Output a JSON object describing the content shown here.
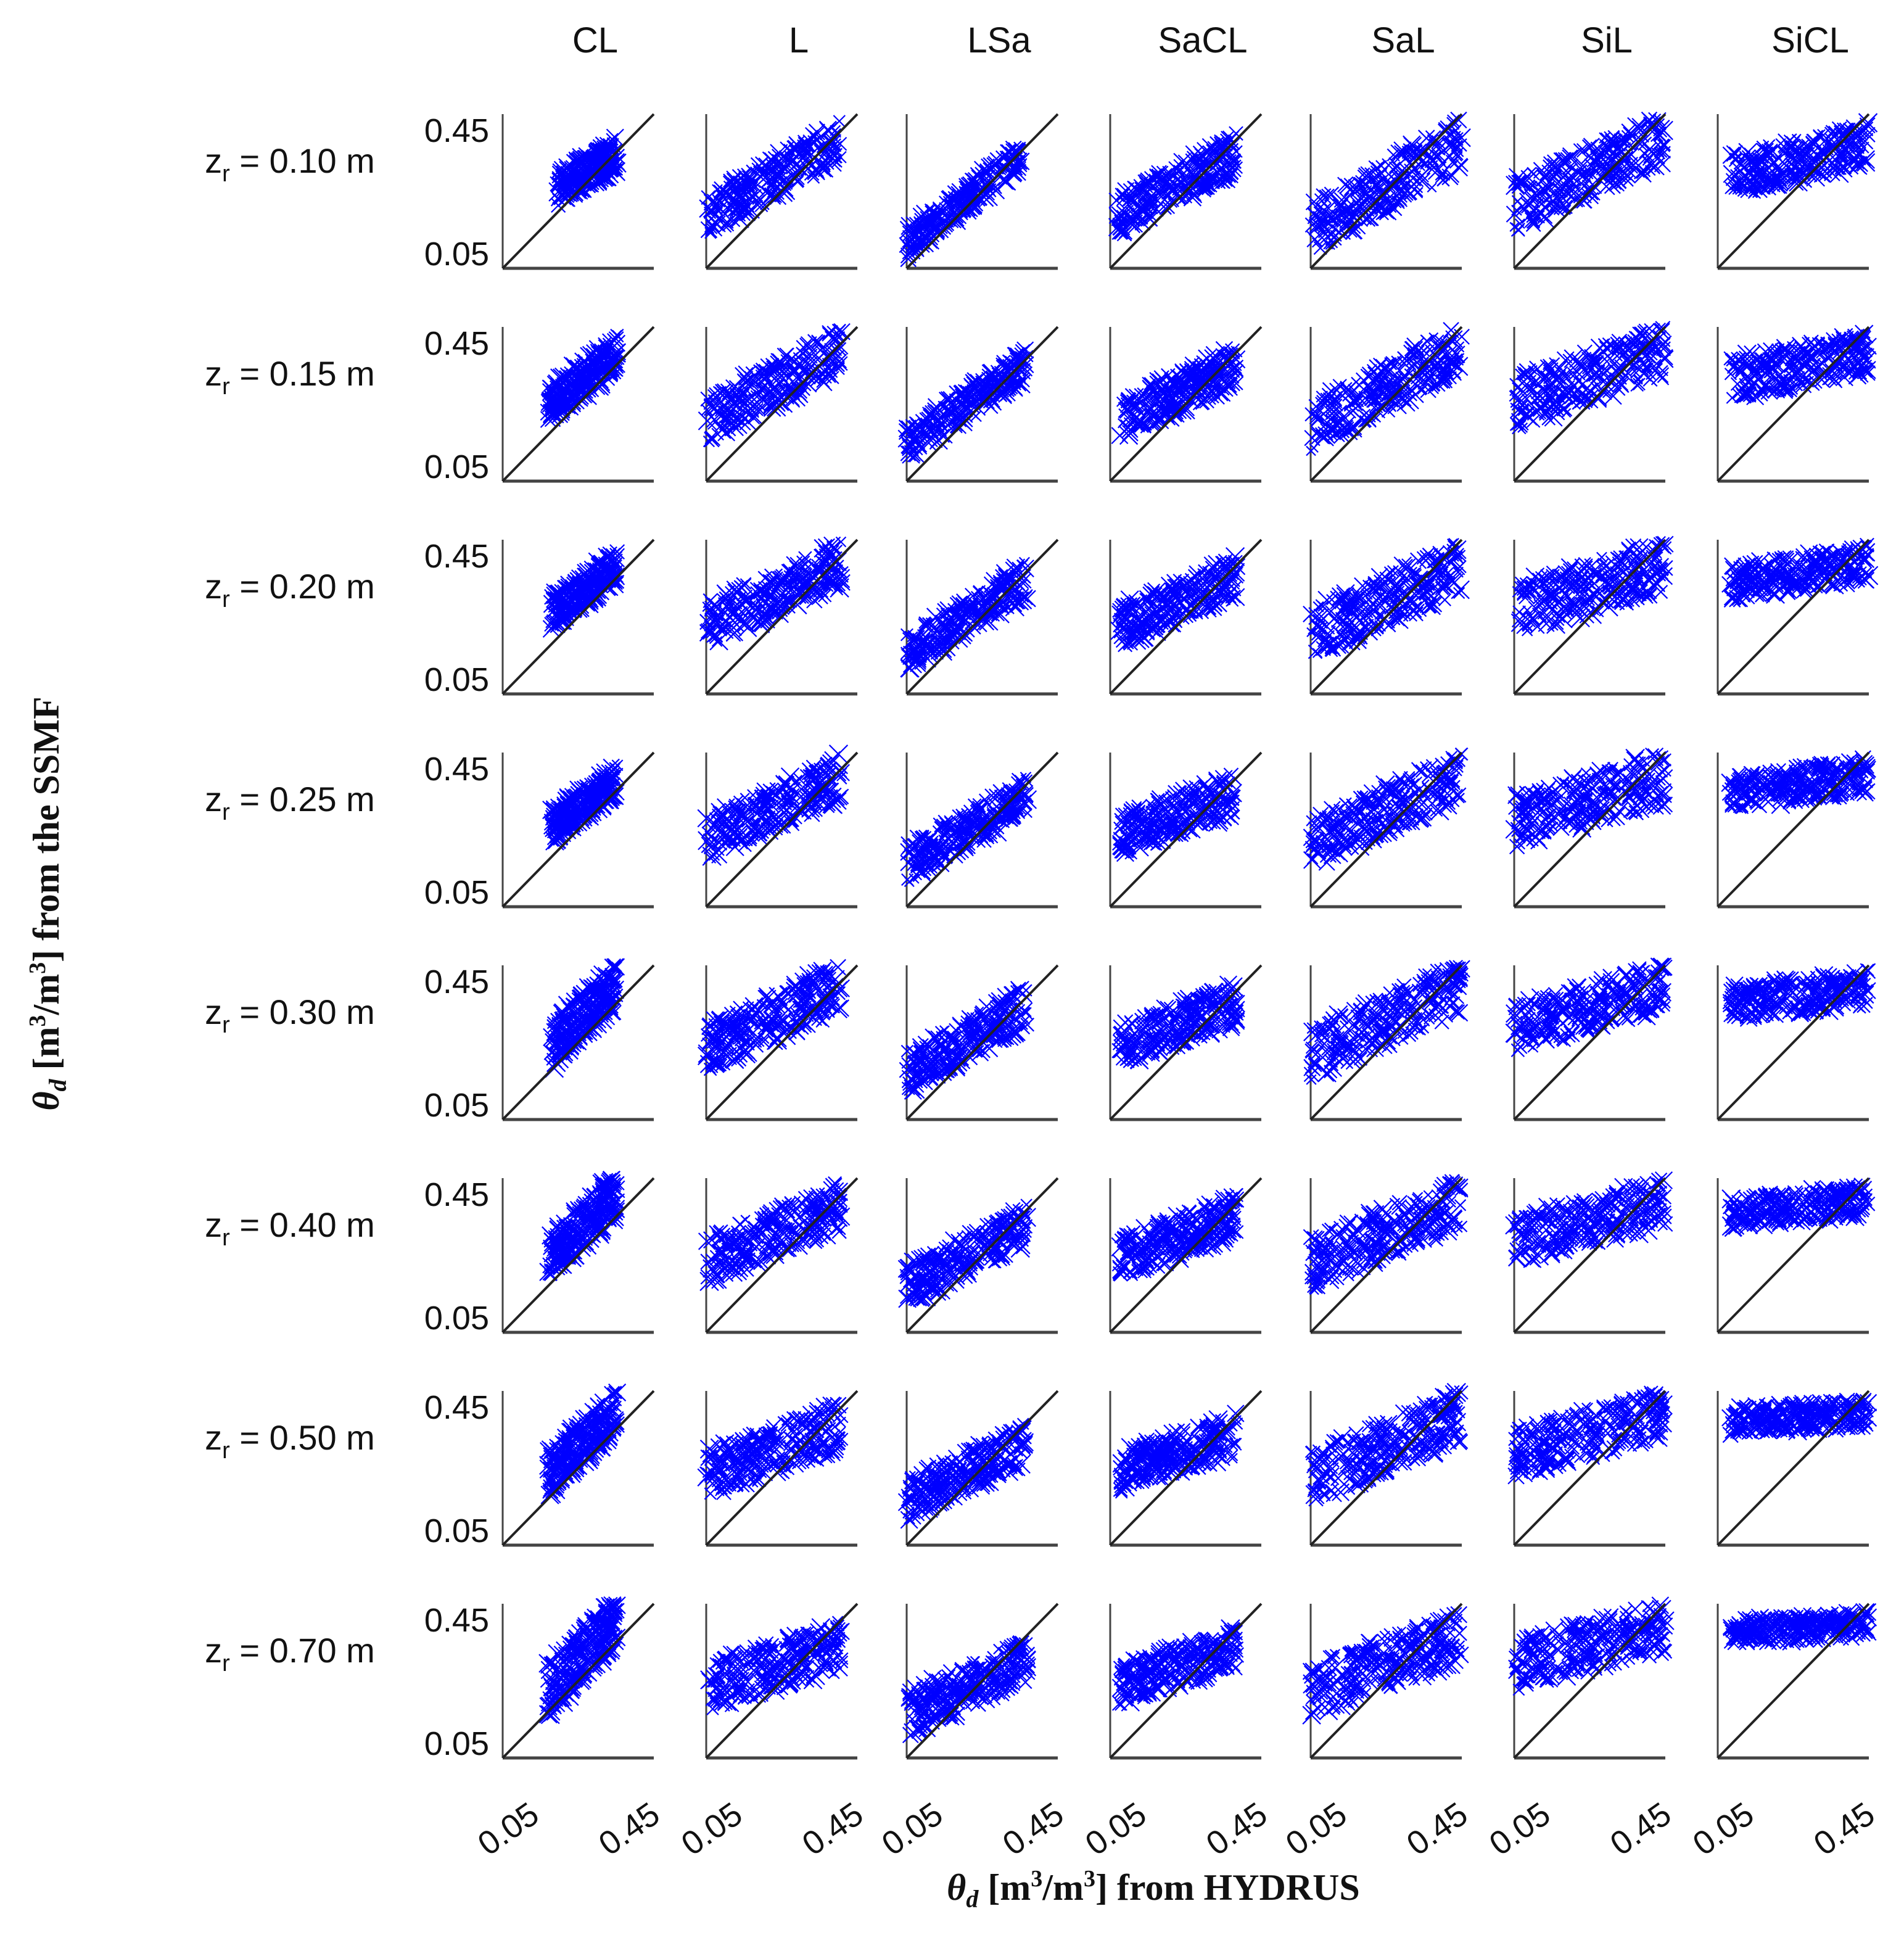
{
  "chart_data": {
    "type": "scatter",
    "description_axis": {
      "xlabel": {
        "theta": "θ",
        "sub": "d",
        "unit": " [m",
        "sup": "3",
        "unit2": "/m",
        "sup2": "3",
        "rest": "] from HYDRUS"
      },
      "ylabel": {
        "theta": "θ",
        "sub": "d",
        "unit": " [m",
        "sup": "3",
        "unit2": "/m",
        "sup2": "3",
        "rest": "] from the SSMF"
      }
    },
    "columns": [
      "CL",
      "L",
      "LSa",
      "SaCL",
      "SaL",
      "SiL",
      "SiCL"
    ],
    "rows": [
      {
        "label": "z",
        "sub": "r",
        "value": " = 0.10 m"
      },
      {
        "label": "z",
        "sub": "r",
        "value": " = 0.15 m"
      },
      {
        "label": "z",
        "sub": "r",
        "value": " = 0.20 m"
      },
      {
        "label": "z",
        "sub": "r",
        "value": " = 0.25 m"
      },
      {
        "label": "z",
        "sub": "r",
        "value": " = 0.30 m"
      },
      {
        "label": "z",
        "sub": "r",
        "value": " = 0.40 m"
      },
      {
        "label": "z",
        "sub": "r",
        "value": " = 0.50 m"
      },
      {
        "label": "z",
        "sub": "r",
        "value": " = 0.70 m"
      }
    ],
    "x_tick_labels": [
      "0.05",
      "0.45"
    ],
    "y_tick_labels": [
      "0.45",
      "0.05"
    ],
    "xlim": [
      0,
      0.5
    ],
    "ylim": [
      0,
      0.5
    ],
    "marker": "x",
    "series_color": "#0000ff",
    "reference_line": "1:1",
    "reference_color": "#222222",
    "clusters": {
      "CL": [
        {
          "x": [
            0.18,
            0.38
          ],
          "ybase": 0.26,
          "slope": 0.55,
          "spread": 0.1
        },
        {
          "x": [
            0.15,
            0.38
          ],
          "ybase": 0.25,
          "slope": 0.7,
          "spread": 0.11
        },
        {
          "x": [
            0.16,
            0.38
          ],
          "ybase": 0.26,
          "slope": 0.7,
          "spread": 0.1
        },
        {
          "x": [
            0.16,
            0.38
          ],
          "ybase": 0.26,
          "slope": 0.7,
          "spread": 0.1
        },
        {
          "x": [
            0.16,
            0.38
          ],
          "ybase": 0.24,
          "slope": 0.9,
          "spread": 0.14
        },
        {
          "x": [
            0.15,
            0.38
          ],
          "ybase": 0.24,
          "slope": 0.9,
          "spread": 0.14
        },
        {
          "x": [
            0.15,
            0.38
          ],
          "ybase": 0.23,
          "slope": 0.9,
          "spread": 0.13
        },
        {
          "x": [
            0.15,
            0.38
          ],
          "ybase": 0.22,
          "slope": 1.0,
          "spread": 0.16
        }
      ],
      "L": [
        {
          "x": [
            0.0,
            0.45
          ],
          "ybase": 0.17,
          "slope": 0.55,
          "spread": 0.12
        },
        {
          "x": [
            0.0,
            0.45
          ],
          "ybase": 0.2,
          "slope": 0.5,
          "spread": 0.13
        },
        {
          "x": [
            0.0,
            0.45
          ],
          "ybase": 0.22,
          "slope": 0.45,
          "spread": 0.13
        },
        {
          "x": [
            0.0,
            0.45
          ],
          "ybase": 0.22,
          "slope": 0.45,
          "spread": 0.13
        },
        {
          "x": [
            0.0,
            0.45
          ],
          "ybase": 0.23,
          "slope": 0.45,
          "spread": 0.14
        },
        {
          "x": [
            0.0,
            0.45
          ],
          "ybase": 0.23,
          "slope": 0.4,
          "spread": 0.14
        },
        {
          "x": [
            0.0,
            0.45
          ],
          "ybase": 0.23,
          "slope": 0.35,
          "spread": 0.14
        },
        {
          "x": [
            0.0,
            0.45
          ],
          "ybase": 0.23,
          "slope": 0.3,
          "spread": 0.14
        }
      ],
      "LSa": [
        {
          "x": [
            0.0,
            0.38
          ],
          "ybase": 0.08,
          "slope": 0.75,
          "spread": 0.09
        },
        {
          "x": [
            0.0,
            0.4
          ],
          "ybase": 0.12,
          "slope": 0.65,
          "spread": 0.1
        },
        {
          "x": [
            0.0,
            0.4
          ],
          "ybase": 0.13,
          "slope": 0.6,
          "spread": 0.11
        },
        {
          "x": [
            0.0,
            0.4
          ],
          "ybase": 0.14,
          "slope": 0.55,
          "spread": 0.11
        },
        {
          "x": [
            0.0,
            0.4
          ],
          "ybase": 0.15,
          "slope": 0.55,
          "spread": 0.12
        },
        {
          "x": [
            0.0,
            0.4
          ],
          "ybase": 0.15,
          "slope": 0.5,
          "spread": 0.12
        },
        {
          "x": [
            0.0,
            0.4
          ],
          "ybase": 0.15,
          "slope": 0.45,
          "spread": 0.12
        },
        {
          "x": [
            0.0,
            0.4
          ],
          "ybase": 0.14,
          "slope": 0.45,
          "spread": 0.13
        }
      ],
      "SaCL": [
        {
          "x": [
            0.02,
            0.42
          ],
          "ybase": 0.17,
          "slope": 0.5,
          "spread": 0.12
        },
        {
          "x": [
            0.03,
            0.42
          ],
          "ybase": 0.2,
          "slope": 0.45,
          "spread": 0.12
        },
        {
          "x": [
            0.03,
            0.42
          ],
          "ybase": 0.22,
          "slope": 0.4,
          "spread": 0.12
        },
        {
          "x": [
            0.03,
            0.42
          ],
          "ybase": 0.23,
          "slope": 0.35,
          "spread": 0.12
        },
        {
          "x": [
            0.03,
            0.42
          ],
          "ybase": 0.24,
          "slope": 0.35,
          "spread": 0.12
        },
        {
          "x": [
            0.03,
            0.42
          ],
          "ybase": 0.24,
          "slope": 0.35,
          "spread": 0.12
        },
        {
          "x": [
            0.03,
            0.42
          ],
          "ybase": 0.24,
          "slope": 0.3,
          "spread": 0.12
        },
        {
          "x": [
            0.03,
            0.42
          ],
          "ybase": 0.24,
          "slope": 0.3,
          "spread": 0.12
        }
      ],
      "SaL": [
        {
          "x": [
            0.0,
            0.5
          ],
          "ybase": 0.13,
          "slope": 0.55,
          "spread": 0.15
        },
        {
          "x": [
            0.0,
            0.5
          ],
          "ybase": 0.18,
          "slope": 0.5,
          "spread": 0.14
        },
        {
          "x": [
            0.0,
            0.5
          ],
          "ybase": 0.19,
          "slope": 0.45,
          "spread": 0.15
        },
        {
          "x": [
            0.0,
            0.5
          ],
          "ybase": 0.2,
          "slope": 0.45,
          "spread": 0.14
        },
        {
          "x": [
            0.0,
            0.5
          ],
          "ybase": 0.21,
          "slope": 0.45,
          "spread": 0.15
        },
        {
          "x": [
            0.0,
            0.5
          ],
          "ybase": 0.22,
          "slope": 0.4,
          "spread": 0.15
        },
        {
          "x": [
            0.0,
            0.5
          ],
          "ybase": 0.22,
          "slope": 0.4,
          "spread": 0.15
        },
        {
          "x": [
            0.0,
            0.5
          ],
          "ybase": 0.22,
          "slope": 0.35,
          "spread": 0.15
        }
      ],
      "SiL": [
        {
          "x": [
            0.0,
            0.5
          ],
          "ybase": 0.2,
          "slope": 0.45,
          "spread": 0.15
        },
        {
          "x": [
            0.0,
            0.5
          ],
          "ybase": 0.25,
          "slope": 0.35,
          "spread": 0.15
        },
        {
          "x": [
            0.0,
            0.5
          ],
          "ybase": 0.27,
          "slope": 0.3,
          "spread": 0.15
        },
        {
          "x": [
            0.0,
            0.5
          ],
          "ybase": 0.28,
          "slope": 0.28,
          "spread": 0.15
        },
        {
          "x": [
            0.0,
            0.5
          ],
          "ybase": 0.29,
          "slope": 0.28,
          "spread": 0.14
        },
        {
          "x": [
            0.0,
            0.5
          ],
          "ybase": 0.3,
          "slope": 0.25,
          "spread": 0.14
        },
        {
          "x": [
            0.0,
            0.5
          ],
          "ybase": 0.3,
          "slope": 0.25,
          "spread": 0.14
        },
        {
          "x": [
            0.0,
            0.5
          ],
          "ybase": 0.3,
          "slope": 0.25,
          "spread": 0.14
        }
      ],
      "SiCL": [
        {
          "x": [
            0.04,
            0.5
          ],
          "ybase": 0.3,
          "slope": 0.22,
          "spread": 0.12
        },
        {
          "x": [
            0.04,
            0.5
          ],
          "ybase": 0.33,
          "slope": 0.18,
          "spread": 0.12
        },
        {
          "x": [
            0.04,
            0.5
          ],
          "ybase": 0.36,
          "slope": 0.14,
          "spread": 0.1
        },
        {
          "x": [
            0.04,
            0.5
          ],
          "ybase": 0.37,
          "slope": 0.12,
          "spread": 0.1
        },
        {
          "x": [
            0.04,
            0.5
          ],
          "ybase": 0.38,
          "slope": 0.1,
          "spread": 0.1
        },
        {
          "x": [
            0.04,
            0.5
          ],
          "ybase": 0.39,
          "slope": 0.08,
          "spread": 0.09
        },
        {
          "x": [
            0.04,
            0.5
          ],
          "ybase": 0.4,
          "slope": 0.06,
          "spread": 0.08
        },
        {
          "x": [
            0.04,
            0.5
          ],
          "ybase": 0.41,
          "slope": 0.05,
          "spread": 0.07
        }
      ]
    }
  }
}
